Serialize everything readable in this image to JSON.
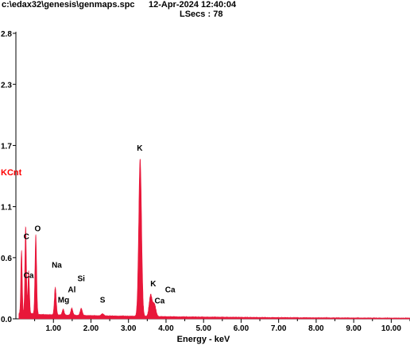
{
  "header": {
    "file_path": "c:\\edax32\\genesis\\genmaps.spc",
    "datetime": "12-Apr-2024 12:40:04",
    "lsecs_label": "LSecs :",
    "lsecs_value": "78"
  },
  "colors": {
    "spectrum": "#e8173a",
    "ylabel": "#ff0000",
    "axis": "#000000"
  },
  "chart_data": {
    "type": "area",
    "xlabel": "Energy - keV",
    "ylabel": "KCnt",
    "xlim": [
      0.0,
      10.5
    ],
    "ylim": [
      0.0,
      2.8
    ],
    "grid": false,
    "xticks": [
      1.0,
      2.0,
      3.0,
      4.0,
      5.0,
      6.0,
      7.0,
      8.0,
      9.0,
      10.0
    ],
    "xtick_labels": [
      "1.00",
      "2.00",
      "3.00",
      "4.00",
      "5.00",
      "6.00",
      "7.00",
      "8.00",
      "9.00",
      "10.00"
    ],
    "yticks": [
      0.0,
      0.6,
      1.1,
      1.7,
      2.3,
      2.8
    ],
    "ytick_labels": [
      "0.0",
      "0.6",
      "1.1",
      "1.7",
      "2.3",
      "2.8"
    ],
    "background": 0.04,
    "peaks": [
      {
        "energy": 0.15,
        "height": 0.62
      },
      {
        "energy": 0.26,
        "height": 0.86
      },
      {
        "energy": 0.34,
        "height": 0.42
      },
      {
        "energy": 0.53,
        "height": 0.78
      },
      {
        "energy": 1.05,
        "height": 0.27
      },
      {
        "energy": 1.26,
        "height": 0.06
      },
      {
        "energy": 1.49,
        "height": 0.07
      },
      {
        "energy": 1.74,
        "height": 0.07
      },
      {
        "energy": 2.31,
        "height": 0.02
      },
      {
        "energy": 3.31,
        "height": 1.55
      },
      {
        "energy": 3.59,
        "height": 0.21
      },
      {
        "energy": 3.69,
        "height": 0.12
      }
    ],
    "annotations": [
      {
        "label": "C",
        "energy": 0.28,
        "kcnt": 0.78
      },
      {
        "label": "O",
        "energy": 0.58,
        "kcnt": 0.86
      },
      {
        "label": "Ca",
        "energy": 0.34,
        "kcnt": 0.4
      },
      {
        "label": "Na",
        "energy": 1.09,
        "kcnt": 0.5
      },
      {
        "label": "Si",
        "energy": 1.74,
        "kcnt": 0.37
      },
      {
        "label": "Al",
        "energy": 1.49,
        "kcnt": 0.26
      },
      {
        "label": "Mg",
        "energy": 1.27,
        "kcnt": 0.16
      },
      {
        "label": "S",
        "energy": 2.31,
        "kcnt": 0.16
      },
      {
        "label": "K",
        "energy": 3.3,
        "kcnt": 1.65
      },
      {
        "label": "K",
        "energy": 3.66,
        "kcnt": 0.32
      },
      {
        "label": "Ca",
        "energy": 4.11,
        "kcnt": 0.26
      },
      {
        "label": "Ca",
        "energy": 3.83,
        "kcnt": 0.15
      }
    ]
  }
}
